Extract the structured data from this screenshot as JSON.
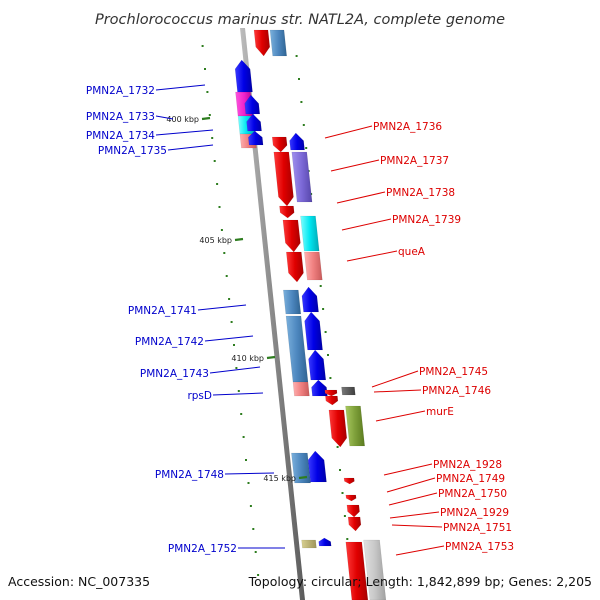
{
  "title": "Prochlorococcus marinus str. NATL2A, complete genome",
  "footer": {
    "accession": "Accession: NC_007335",
    "summary": "Topology: circular; Length: 1,842,899 bp; Genes: 2,205"
  },
  "colors": {
    "label_left": "#0000cc",
    "label_right": "#dd0000",
    "backbone": "#8a8a8a",
    "tick": "#2e7d1f"
  },
  "ticks": [
    "400 kbp",
    "405 kbp",
    "410 kbp",
    "415 kbp"
  ],
  "labels_left": [
    "PMN2A_1732",
    "PMN2A_1733",
    "PMN2A_1734",
    "PMN2A_1735",
    "PMN2A_1741",
    "PMN2A_1742",
    "PMN2A_1743",
    "rpsD",
    "PMN2A_1748",
    "PMN2A_1752"
  ],
  "labels_right": [
    "PMN2A_1736",
    "PMN2A_1737",
    "PMN2A_1738",
    "PMN2A_1739",
    "queA",
    "PMN2A_1745",
    "PMN2A_1746",
    "murE",
    "PMN2A_1928",
    "PMN2A_1749",
    "PMN2A_1750",
    "PMN2A_1929",
    "PMN2A_1751",
    "PMN2A_1753"
  ]
}
